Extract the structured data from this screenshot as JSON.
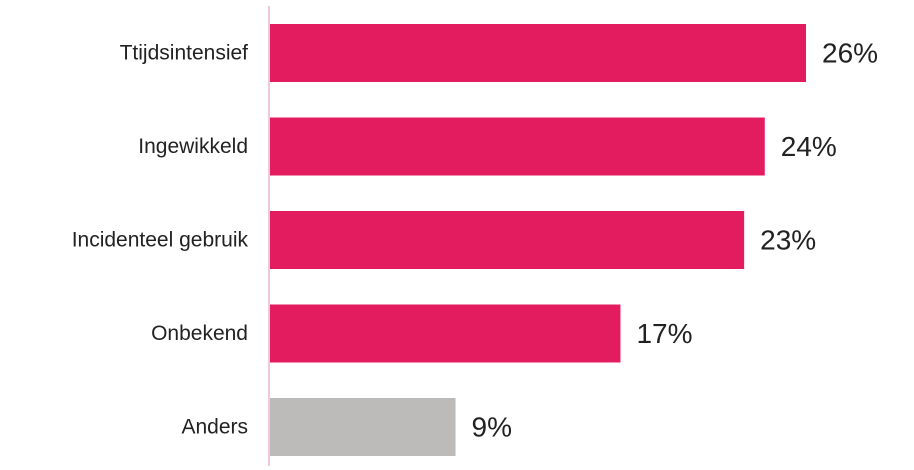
{
  "chart_data": {
    "type": "bar",
    "orientation": "horizontal",
    "categories": [
      "Ttijdsintensief",
      "Ingewikkeld",
      "Incidenteel gebruik",
      "Onbekend",
      "Anders"
    ],
    "values": [
      26,
      24,
      23,
      17,
      9
    ],
    "value_labels": [
      "26%",
      "24%",
      "23%",
      "17%",
      "9%"
    ],
    "value_unit": "%",
    "xlim": [
      0,
      26
    ],
    "grid": false,
    "legend": "none",
    "colors": {
      "primary": "#e31b5f",
      "other": "#bdbbb9",
      "axis": "#f3c9d6"
    },
    "bar_colors": [
      "#e31b5f",
      "#e31b5f",
      "#e31b5f",
      "#e31b5f",
      "#bdbbb9"
    ]
  }
}
